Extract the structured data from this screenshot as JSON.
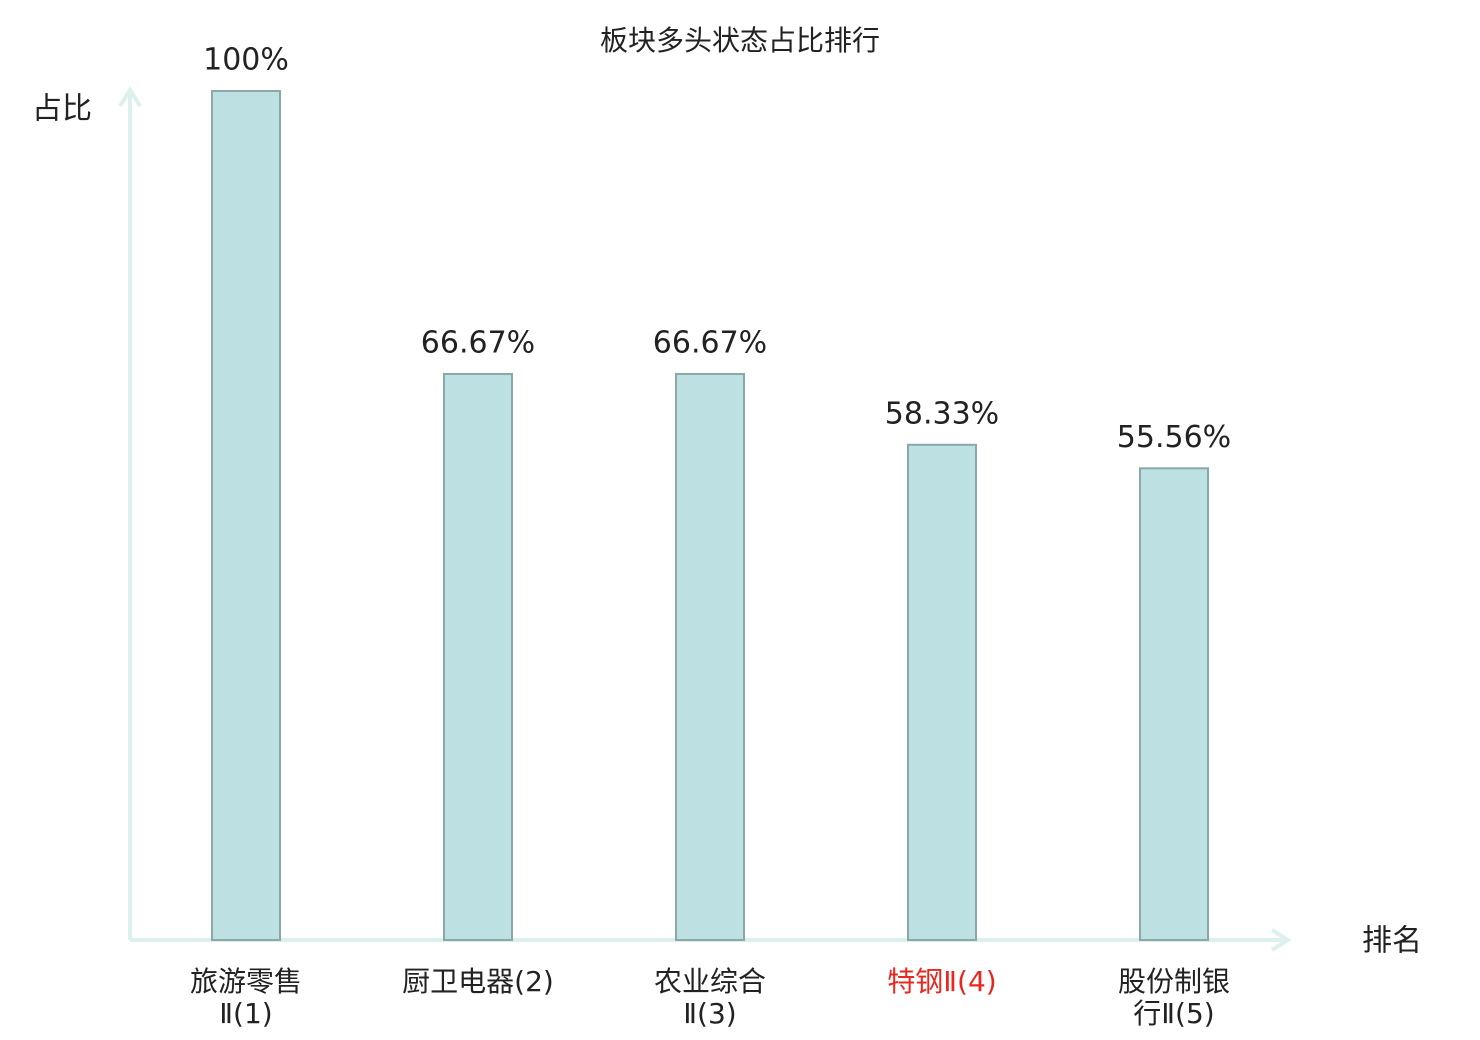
{
  "chart_data": {
    "type": "bar",
    "title": "板块多头状态占比排行",
    "y_label": "占比",
    "x_label": "排名",
    "categories": [
      "旅游零售\nⅡ(1)",
      "厨卫电器(2)",
      "农业综合\nⅡ(3)",
      "特钢Ⅱ(4)",
      "股份制银\n行Ⅱ(5)"
    ],
    "values": [
      100,
      66.67,
      66.67,
      58.33,
      55.56
    ],
    "value_labels": [
      "100%",
      "66.67%",
      "66.67%",
      "58.33%",
      "55.56%"
    ],
    "color": "#bde0e2",
    "edge_color": "#8aa8a8",
    "label_colors": [
      "#222222",
      "#222222",
      "#222222",
      "#e8271e",
      "#222222"
    ],
    "ylim": [
      0,
      100
    ]
  }
}
